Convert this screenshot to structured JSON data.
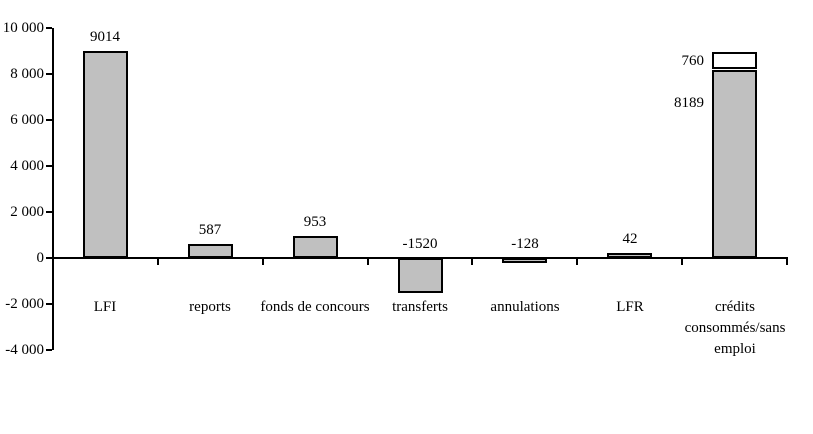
{
  "chart_data": {
    "type": "bar",
    "title": "",
    "xlabel": "",
    "ylabel": "",
    "grid": false,
    "legend": false,
    "background": "#FFFFFF",
    "bar_fill": "#C0C0C0",
    "bar_border": "#000000",
    "axis_color": "#000000",
    "ylim": [
      -4000,
      10000
    ],
    "yticks": [
      10000,
      8000,
      6000,
      4000,
      2000,
      0,
      -2000,
      -4000
    ],
    "ytick_labels": [
      "10 000",
      "8 000",
      "6 000",
      "4 000",
      "2 000",
      "0",
      "-2 000",
      "-4 000"
    ],
    "categories": [
      "LFI",
      "reports",
      "fonds de concours",
      "transferts",
      "annulations",
      "LFR",
      "crédits\nconsommés/sans\nemploi"
    ],
    "series": [
      {
        "name": "segment-bottom",
        "color": "#C0C0C0",
        "values": [
          9014,
          587,
          953,
          -1520,
          -128,
          42,
          8189
        ]
      },
      {
        "name": "segment-top",
        "color": "#FFFFFF",
        "values": [
          null,
          null,
          null,
          null,
          null,
          null,
          760
        ]
      }
    ],
    "value_labels": [
      "9014",
      "587",
      "953",
      "-1520",
      "-128",
      "42",
      null
    ],
    "stacked_value_labels": {
      "top": "760",
      "bottom": "8189"
    }
  }
}
